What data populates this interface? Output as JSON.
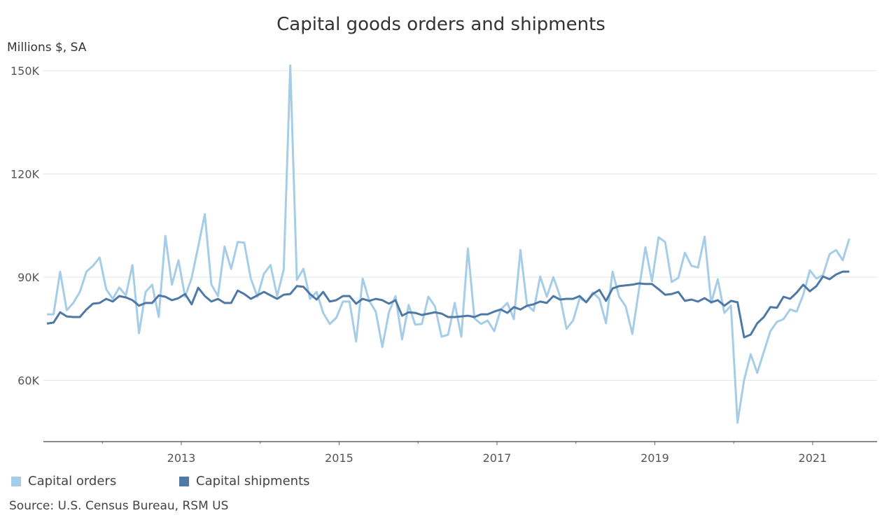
{
  "chart_data": {
    "type": "line",
    "title": "Capital goods orders and shipments",
    "ylabel": "Millions $, SA",
    "xlabel": "",
    "ylim": [
      43000,
      158000
    ],
    "xlim": [
      "2011-04",
      "2021-11"
    ],
    "yticks": [
      {
        "value": 60000,
        "label": "60K"
      },
      {
        "value": 90000,
        "label": "90K"
      },
      {
        "value": 120000,
        "label": "120K"
      },
      {
        "value": 150000,
        "label": "150K"
      }
    ],
    "xticks": [
      {
        "year": 2012,
        "label": ""
      },
      {
        "year": 2013,
        "label": "2013"
      },
      {
        "year": 2014,
        "label": ""
      },
      {
        "year": 2015,
        "label": "2015"
      },
      {
        "year": 2016,
        "label": ""
      },
      {
        "year": 2017,
        "label": "2017"
      },
      {
        "year": 2018,
        "label": ""
      },
      {
        "year": 2019,
        "label": "2019"
      },
      {
        "year": 2020,
        "label": ""
      },
      {
        "year": 2021,
        "label": "2021"
      }
    ],
    "grid": "horizontal",
    "legend_position": "bottom-left",
    "x_start": "2011-05",
    "x_frequency": "monthly",
    "series": [
      {
        "name": "Capital orders",
        "color": "#a6cde8",
        "values": [
          79.2,
          79.2,
          91.6,
          80.4,
          82.5,
          85.7,
          91.6,
          93.3,
          95.7,
          86.5,
          83.7,
          87.0,
          84.7,
          93.5,
          73.7,
          85.7,
          87.8,
          78.4,
          102.0,
          87.8,
          94.9,
          84.3,
          89.8,
          98.9,
          108.3,
          87.8,
          84.5,
          98.9,
          92.4,
          100.2,
          100.0,
          89.6,
          84.3,
          91.0,
          93.5,
          84.5,
          92.2,
          151.5,
          89.2,
          92.4,
          83.7,
          85.7,
          79.6,
          76.4,
          78.2,
          82.9,
          82.9,
          71.3,
          89.6,
          83.1,
          80.0,
          69.7,
          79.8,
          84.5,
          71.9,
          81.9,
          76.2,
          76.4,
          84.3,
          81.5,
          72.7,
          73.3,
          82.5,
          72.7,
          98.3,
          78.0,
          76.4,
          77.4,
          74.3,
          80.6,
          82.5,
          77.8,
          97.9,
          81.9,
          80.2,
          90.2,
          84.3,
          90.0,
          84.5,
          75.0,
          77.4,
          83.9,
          82.7,
          85.5,
          83.7,
          76.6,
          91.6,
          84.3,
          81.5,
          73.5,
          86.1,
          98.7,
          88.8,
          101.6,
          100.2,
          88.6,
          89.8,
          97.1,
          93.3,
          92.8,
          101.8,
          82.5,
          89.4,
          79.6,
          81.7,
          47.7,
          60.1,
          67.6,
          62.2,
          68.3,
          74.3,
          77.0,
          77.8,
          80.6,
          80.0,
          84.9,
          92.0,
          89.6,
          90.6,
          96.7,
          97.9,
          94.9,
          101.2
        ]
      },
      {
        "name": "Capital shipments",
        "color": "#4e79a7",
        "values": [
          76.5,
          76.8,
          79.8,
          78.6,
          78.4,
          78.4,
          80.6,
          82.3,
          82.5,
          83.7,
          82.9,
          84.5,
          84.1,
          83.3,
          81.7,
          82.5,
          82.5,
          84.7,
          84.3,
          83.3,
          83.9,
          85.1,
          82.1,
          86.9,
          84.5,
          82.9,
          83.7,
          82.5,
          82.5,
          86.1,
          85.1,
          83.7,
          84.7,
          85.7,
          84.7,
          83.7,
          84.9,
          85.1,
          87.4,
          87.2,
          85.1,
          83.5,
          85.7,
          82.9,
          83.3,
          84.5,
          84.5,
          82.3,
          83.7,
          83.1,
          83.7,
          83.3,
          82.3,
          83.3,
          78.8,
          79.8,
          79.6,
          79.0,
          79.4,
          79.8,
          79.4,
          78.4,
          78.4,
          78.6,
          78.8,
          78.4,
          79.2,
          79.2,
          80.0,
          80.6,
          79.6,
          81.3,
          80.6,
          81.7,
          82.1,
          82.9,
          82.5,
          84.5,
          83.5,
          83.7,
          83.7,
          84.5,
          82.7,
          85.1,
          86.3,
          83.1,
          86.7,
          87.4,
          87.6,
          87.8,
          88.2,
          88.0,
          88.0,
          86.5,
          84.9,
          85.1,
          85.7,
          83.1,
          83.5,
          82.9,
          83.9,
          82.7,
          83.3,
          81.7,
          83.1,
          82.7,
          72.5,
          73.3,
          76.6,
          78.4,
          81.3,
          81.1,
          84.3,
          83.7,
          85.5,
          87.8,
          85.9,
          87.4,
          90.2,
          89.4,
          90.8,
          91.6,
          91.6
        ]
      }
    ],
    "value_unit": "thousands of millions $",
    "source": "Source: U.S. Census Bureau, RSM US"
  }
}
